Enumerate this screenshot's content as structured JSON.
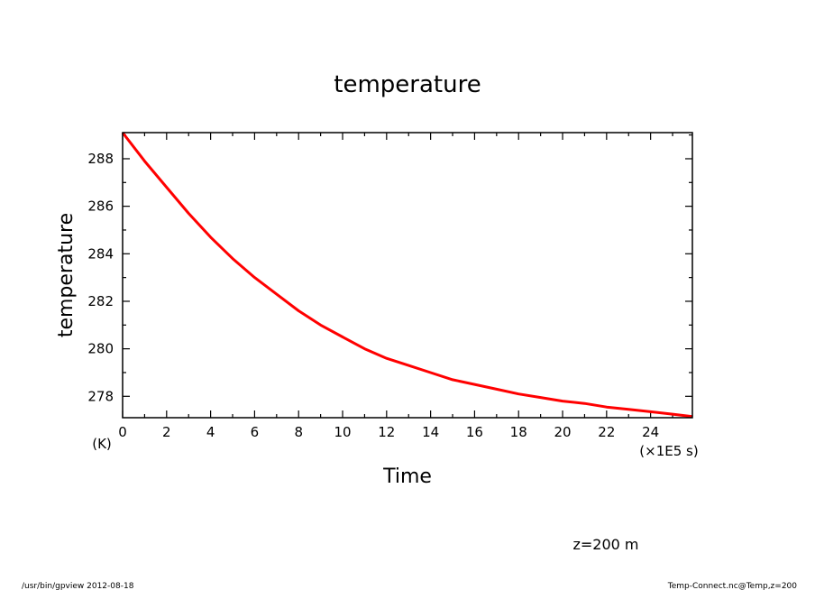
{
  "chart_data": {
    "type": "line",
    "title": "temperature",
    "xlabel": "Time",
    "x_unit": "(×1E5 s)",
    "ylabel": "temperature",
    "y_unit": "(K)",
    "xlim": [
      0,
      25.9
    ],
    "ylim": [
      277.1,
      289.1
    ],
    "x_ticks": [
      "0",
      "2",
      "4",
      "6",
      "8",
      "10",
      "12",
      "14",
      "16",
      "18",
      "20",
      "22",
      "24"
    ],
    "y_ticks": [
      "278",
      "280",
      "282",
      "284",
      "286",
      "288"
    ],
    "grid": false,
    "series": [
      {
        "color": "#ff0000",
        "x": [
          0,
          1,
          2,
          3,
          4,
          5,
          6,
          7,
          8,
          9,
          10,
          11,
          12,
          13,
          14,
          15,
          16,
          17,
          18,
          19,
          20,
          21,
          22,
          23,
          24,
          25,
          25.9
        ],
        "y": [
          289.1,
          287.9,
          286.8,
          285.7,
          284.7,
          283.8,
          283.0,
          282.3,
          281.6,
          281.0,
          280.5,
          280.0,
          279.6,
          279.3,
          279.0,
          278.7,
          278.5,
          278.3,
          278.1,
          277.95,
          277.8,
          277.7,
          277.55,
          277.45,
          277.35,
          277.25,
          277.15
        ]
      }
    ]
  },
  "annotation": "z=200 m",
  "footer_left": "/usr/bin/gpview   2012-08-18",
  "footer_right": "Temp-Connect.nc@Temp,z=200"
}
